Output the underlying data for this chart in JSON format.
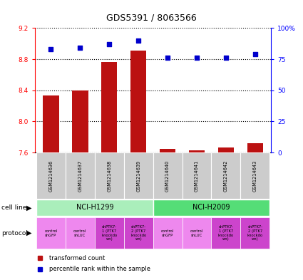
{
  "title": "GDS5391 / 8063566",
  "samples": [
    "GSM1214636",
    "GSM1214637",
    "GSM1214638",
    "GSM1214639",
    "GSM1214640",
    "GSM1214641",
    "GSM1214642",
    "GSM1214643"
  ],
  "transformed_counts": [
    8.33,
    8.4,
    8.76,
    8.91,
    7.65,
    7.63,
    7.67,
    7.72
  ],
  "percentile_ranks": [
    83,
    84,
    87,
    90,
    76,
    76,
    76,
    79
  ],
  "ylim_left": [
    7.6,
    9.2
  ],
  "ylim_right": [
    0,
    100
  ],
  "yticks_left": [
    7.6,
    8.0,
    8.4,
    8.8,
    9.2
  ],
  "yticks_right": [
    0,
    25,
    50,
    75,
    100
  ],
  "bar_color": "#bb1111",
  "dot_color": "#0000cc",
  "bar_bottom": 7.6,
  "cell_lines": [
    {
      "label": "NCI-H1299",
      "start": 0,
      "end": 3,
      "color": "#aaeebb"
    },
    {
      "label": "NCI-H2009",
      "start": 4,
      "end": 7,
      "color": "#55dd77"
    }
  ],
  "protocols": [
    {
      "label": "control\nshGFP",
      "col": 0,
      "color": "#ee88ee"
    },
    {
      "label": "control\nshLUC",
      "col": 1,
      "color": "#ee88ee"
    },
    {
      "label": "shPTK7-\n1 (PTK7\nknockdo\nwn)",
      "col": 2,
      "color": "#cc44cc"
    },
    {
      "label": "shPTK7-\n2 (PTK7\nknockdo\nwn)",
      "col": 3,
      "color": "#cc44cc"
    },
    {
      "label": "control\nshGFP",
      "col": 4,
      "color": "#ee88ee"
    },
    {
      "label": "control\nshLUC",
      "col": 5,
      "color": "#ee88ee"
    },
    {
      "label": "shPTK7-\n1 (PTK7\nknockdo\nwn)",
      "col": 6,
      "color": "#cc44cc"
    },
    {
      "label": "shPTK7-\n2 (PTK7\nknockdo\nwn)",
      "col": 7,
      "color": "#cc44cc"
    }
  ],
  "legend_items": [
    {
      "label": "transformed count",
      "color": "#bb1111"
    },
    {
      "label": "percentile rank within the sample",
      "color": "#0000cc"
    }
  ],
  "sample_bg_color": "#cccccc",
  "fig_width": 4.25,
  "fig_height": 3.93,
  "dpi": 100
}
